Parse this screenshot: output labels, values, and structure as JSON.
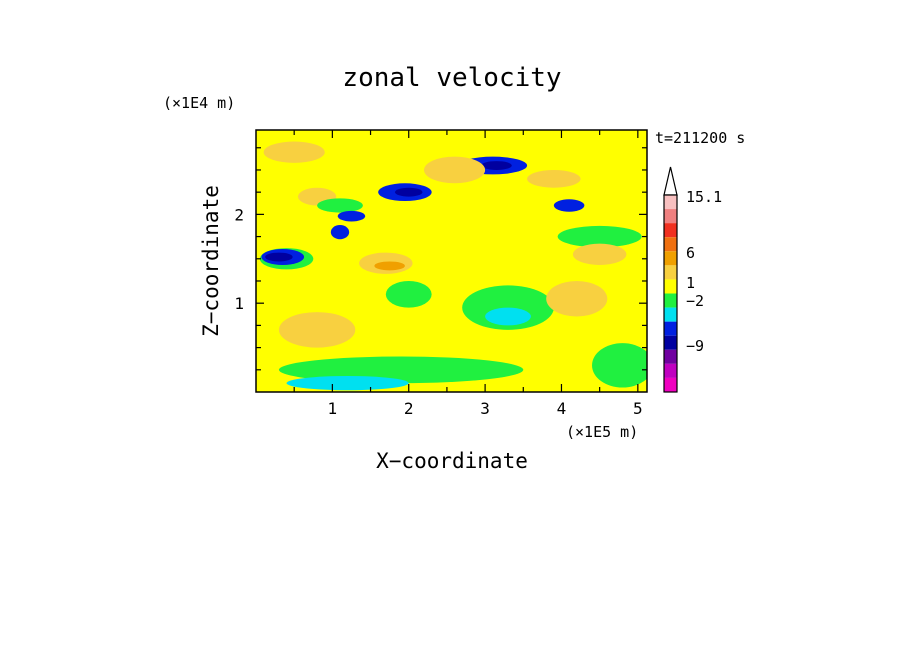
{
  "chart_data": {
    "type": "heatmap",
    "title": "zonal velocity",
    "xlabel": "X−coordinate",
    "ylabel": "Z−coordinate",
    "x_unit": "(×1E5 m)",
    "y_unit": "(×1E4 m)",
    "time_label": "t=211200 s",
    "xlim": [
      0,
      5.12
    ],
    "ylim": [
      0,
      2.95
    ],
    "x_ticks": [
      "1",
      "2",
      "3",
      "4",
      "5"
    ],
    "y_ticks": [
      "1",
      "2"
    ],
    "colorbar": {
      "tick_labels": [
        "15.1",
        "6",
        "1",
        "−2",
        "−9"
      ],
      "tick_values": [
        15.1,
        6,
        1,
        -2,
        -9
      ],
      "levels_top_to_bottom": [
        {
          "color": "#f8c0c0"
        },
        {
          "color": "#f08080"
        },
        {
          "color": "#f03020"
        },
        {
          "color": "#f07010"
        },
        {
          "color": "#f0a000"
        },
        {
          "color": "#f8d040"
        },
        {
          "color": "#ffff00"
        },
        {
          "color": "#20f040"
        },
        {
          "color": "#00e0f0"
        },
        {
          "color": "#0020e0"
        },
        {
          "color": "#0000a0"
        },
        {
          "color": "#7000a0"
        },
        {
          "color": "#c000c0"
        },
        {
          "color": "#f000c0"
        }
      ]
    },
    "field": {
      "background_color": "#ffff00",
      "features": [
        {
          "x": 0.4,
          "z": 1.5,
          "rx": 0.35,
          "rz": 0.12,
          "color": "#20f040"
        },
        {
          "x": 0.35,
          "z": 1.52,
          "rx": 0.28,
          "rz": 0.09,
          "color": "#0020e0"
        },
        {
          "x": 0.3,
          "z": 1.52,
          "rx": 0.18,
          "rz": 0.05,
          "color": "#0000a0"
        },
        {
          "x": 0.8,
          "z": 2.2,
          "rx": 0.25,
          "rz": 0.1,
          "color": "#f8d040"
        },
        {
          "x": 1.1,
          "z": 2.1,
          "rx": 0.3,
          "rz": 0.08,
          "color": "#20f040"
        },
        {
          "x": 1.1,
          "z": 1.8,
          "rx": 0.12,
          "rz": 0.08,
          "color": "#0020e0"
        },
        {
          "x": 1.25,
          "z": 1.98,
          "rx": 0.18,
          "rz": 0.06,
          "color": "#0020e0"
        },
        {
          "x": 1.95,
          "z": 2.25,
          "rx": 0.35,
          "rz": 0.1,
          "color": "#0020e0"
        },
        {
          "x": 2.0,
          "z": 2.25,
          "rx": 0.18,
          "rz": 0.05,
          "color": "#0000a0"
        },
        {
          "x": 3.1,
          "z": 2.55,
          "rx": 0.45,
          "rz": 0.1,
          "color": "#0020e0"
        },
        {
          "x": 3.15,
          "z": 2.55,
          "rx": 0.2,
          "rz": 0.05,
          "color": "#0000a0"
        },
        {
          "x": 4.1,
          "z": 2.1,
          "rx": 0.2,
          "rz": 0.07,
          "color": "#0020e0"
        },
        {
          "x": 4.5,
          "z": 1.75,
          "rx": 0.55,
          "rz": 0.12,
          "color": "#20f040"
        },
        {
          "x": 4.5,
          "z": 1.55,
          "rx": 0.35,
          "rz": 0.12,
          "color": "#f8d040"
        },
        {
          "x": 1.7,
          "z": 1.45,
          "rx": 0.35,
          "rz": 0.12,
          "color": "#f8d040"
        },
        {
          "x": 1.75,
          "z": 1.42,
          "rx": 0.2,
          "rz": 0.05,
          "color": "#f0a000"
        },
        {
          "x": 0.8,
          "z": 0.7,
          "rx": 0.5,
          "rz": 0.2,
          "color": "#f8d040"
        },
        {
          "x": 3.3,
          "z": 0.95,
          "rx": 0.6,
          "rz": 0.25,
          "color": "#20f040"
        },
        {
          "x": 3.3,
          "z": 0.85,
          "rx": 0.3,
          "rz": 0.1,
          "color": "#00e0f0"
        },
        {
          "x": 4.2,
          "z": 1.05,
          "rx": 0.4,
          "rz": 0.2,
          "color": "#f8d040"
        },
        {
          "x": 2.6,
          "z": 2.5,
          "rx": 0.4,
          "rz": 0.15,
          "color": "#f8d040"
        },
        {
          "x": 0.5,
          "z": 2.7,
          "rx": 0.4,
          "rz": 0.12,
          "color": "#f8d040"
        },
        {
          "x": 1.9,
          "z": 0.25,
          "rx": 1.6,
          "rz": 0.15,
          "color": "#20f040"
        },
        {
          "x": 1.2,
          "z": 0.1,
          "rx": 0.8,
          "rz": 0.08,
          "color": "#00e0f0"
        },
        {
          "x": 4.8,
          "z": 0.3,
          "rx": 0.4,
          "rz": 0.25,
          "color": "#20f040"
        },
        {
          "x": 2.0,
          "z": 1.1,
          "rx": 0.3,
          "rz": 0.15,
          "color": "#20f040"
        },
        {
          "x": 3.9,
          "z": 2.4,
          "rx": 0.35,
          "rz": 0.1,
          "color": "#f8d040"
        }
      ]
    }
  }
}
